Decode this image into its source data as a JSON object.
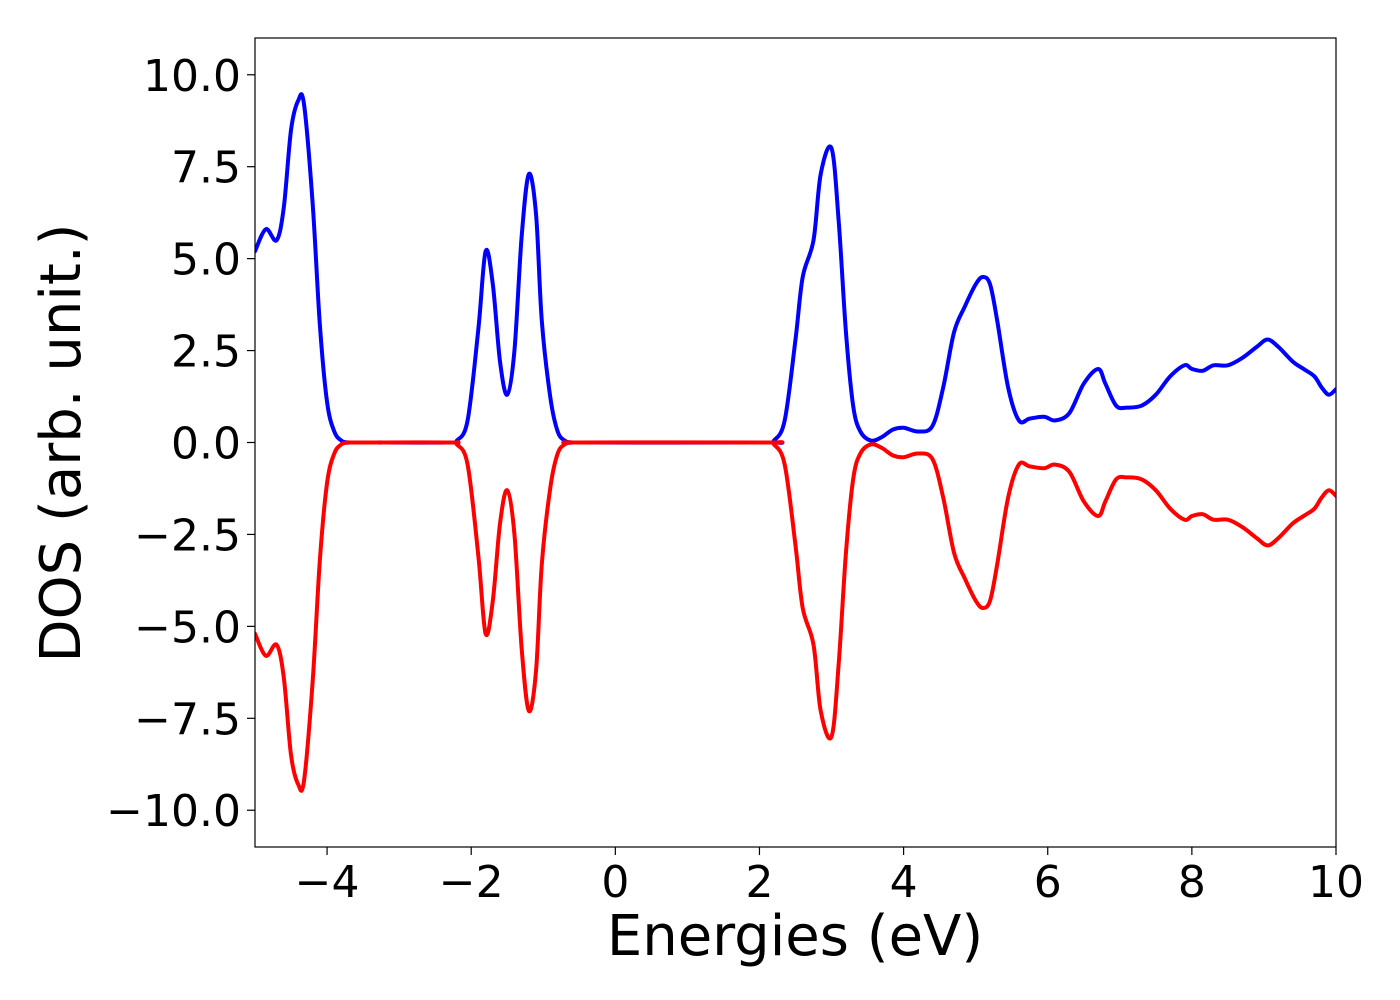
{
  "chart_data": {
    "type": "line",
    "title": "",
    "xlabel": "Energies (eV)",
    "ylabel": "DOS (arb. unit.)",
    "xlim": [
      -5,
      10
    ],
    "ylim": [
      -11,
      11
    ],
    "grid": false,
    "legend": "none",
    "xticks": [
      -4,
      -2,
      0,
      2,
      4,
      6,
      8,
      10
    ],
    "xtick_labels": [
      "−4",
      "−2",
      "0",
      "2",
      "4",
      "6",
      "8",
      "10"
    ],
    "yticks": [
      10,
      7.5,
      5,
      2.5,
      0,
      -2.5,
      -5,
      -7.5,
      -10
    ],
    "ytick_labels": [
      "10.0",
      "7.5",
      "5.0",
      "2.5",
      "0.0",
      "−2.5",
      "−5.0",
      "−7.5",
      "−10.0"
    ],
    "series": [
      {
        "color": "#0000ff",
        "x": [
          -5.0,
          -4.85,
          -4.7,
          -4.6,
          -4.5,
          -4.4,
          -4.32,
          -4.2,
          -4.1,
          -4.0,
          -3.9,
          -3.8,
          -3.7,
          -3.6,
          -2.3,
          -2.2,
          -2.05,
          -1.9,
          -1.8,
          -1.7,
          -1.6,
          -1.5,
          -1.4,
          -1.3,
          -1.2,
          -1.1,
          -1.02,
          -0.9,
          -0.8,
          -0.7,
          -0.6,
          -0.5,
          2.1,
          2.2,
          2.35,
          2.5,
          2.6,
          2.75,
          2.85,
          3.0,
          3.1,
          3.2,
          3.3,
          3.4,
          3.55,
          3.7,
          3.85,
          4.0,
          4.2,
          4.4,
          4.55,
          4.7,
          4.85,
          5.0,
          5.1,
          5.2,
          5.3,
          5.45,
          5.6,
          5.75,
          5.95,
          6.1,
          6.3,
          6.5,
          6.7,
          6.8,
          6.95,
          7.1,
          7.3,
          7.5,
          7.7,
          7.9,
          8.0,
          8.15,
          8.3,
          8.5,
          8.7,
          8.9,
          9.05,
          9.2,
          9.4,
          9.55,
          9.7,
          9.8,
          9.9,
          10.0
        ],
        "values": [
          5.2,
          5.8,
          5.5,
          6.4,
          8.5,
          9.3,
          9.2,
          6.5,
          3.2,
          1.1,
          0.3,
          0.05,
          0.0,
          0.0,
          0.0,
          0.05,
          0.6,
          3.1,
          5.2,
          4.3,
          2.2,
          1.3,
          2.5,
          5.6,
          7.3,
          6.2,
          3.3,
          1.2,
          0.3,
          0.05,
          0.0,
          0.0,
          0.0,
          0.05,
          0.6,
          2.8,
          4.5,
          5.5,
          7.3,
          8.0,
          6.0,
          3.0,
          1.0,
          0.3,
          0.05,
          0.15,
          0.35,
          0.4,
          0.3,
          0.45,
          1.5,
          3.0,
          3.7,
          4.3,
          4.5,
          4.3,
          3.3,
          1.5,
          0.6,
          0.65,
          0.7,
          0.6,
          0.8,
          1.6,
          2.0,
          1.6,
          1.0,
          0.95,
          1.0,
          1.3,
          1.8,
          2.1,
          2.0,
          1.95,
          2.1,
          2.1,
          2.3,
          2.6,
          2.8,
          2.6,
          2.2,
          2.0,
          1.8,
          1.5,
          1.3,
          1.45
        ]
      },
      {
        "color": "#ff0000",
        "x": [
          -5.0,
          -4.85,
          -4.7,
          -4.6,
          -4.5,
          -4.4,
          -4.32,
          -4.2,
          -4.1,
          -4.0,
          -3.9,
          -3.8,
          -3.7,
          -3.6,
          -2.3,
          -2.2,
          -2.05,
          -1.9,
          -1.8,
          -1.7,
          -1.6,
          -1.5,
          -1.4,
          -1.3,
          -1.2,
          -1.1,
          -1.02,
          -0.9,
          -0.8,
          -0.7,
          -0.6,
          -0.5,
          2.1,
          2.2,
          2.35,
          2.5,
          2.6,
          2.75,
          2.85,
          3.0,
          3.1,
          3.2,
          3.3,
          3.4,
          3.55,
          3.7,
          3.85,
          4.0,
          4.2,
          4.4,
          4.55,
          4.7,
          4.85,
          5.0,
          5.1,
          5.2,
          5.3,
          5.45,
          5.6,
          5.75,
          5.95,
          6.1,
          6.3,
          6.5,
          6.7,
          6.8,
          6.95,
          7.1,
          7.3,
          7.5,
          7.7,
          7.9,
          8.0,
          8.15,
          8.3,
          8.5,
          8.7,
          8.9,
          9.05,
          9.2,
          9.4,
          9.55,
          9.7,
          9.8,
          9.9,
          10.0
        ],
        "values": [
          -5.2,
          -5.8,
          -5.5,
          -6.4,
          -8.5,
          -9.3,
          -9.2,
          -6.5,
          -3.2,
          -1.1,
          -0.3,
          -0.05,
          0.0,
          0.0,
          0.0,
          -0.05,
          -0.6,
          -3.1,
          -5.2,
          -4.3,
          -2.2,
          -1.3,
          -2.5,
          -5.6,
          -7.3,
          -6.2,
          -3.3,
          -1.2,
          -0.3,
          -0.05,
          0.0,
          0.0,
          0.0,
          -0.05,
          -0.6,
          -2.8,
          -4.5,
          -5.5,
          -7.3,
          -8.0,
          -6.0,
          -3.0,
          -1.0,
          -0.3,
          -0.05,
          -0.15,
          -0.35,
          -0.4,
          -0.3,
          -0.45,
          -1.5,
          -3.0,
          -3.7,
          -4.3,
          -4.5,
          -4.3,
          -3.3,
          -1.5,
          -0.6,
          -0.65,
          -0.7,
          -0.6,
          -0.8,
          -1.6,
          -2.0,
          -1.6,
          -1.0,
          -0.95,
          -1.0,
          -1.3,
          -1.8,
          -2.1,
          -2.0,
          -1.95,
          -2.1,
          -2.1,
          -2.3,
          -2.6,
          -2.8,
          -2.6,
          -2.2,
          -2.0,
          -1.8,
          -1.5,
          -1.3,
          -1.45
        ]
      }
    ]
  }
}
